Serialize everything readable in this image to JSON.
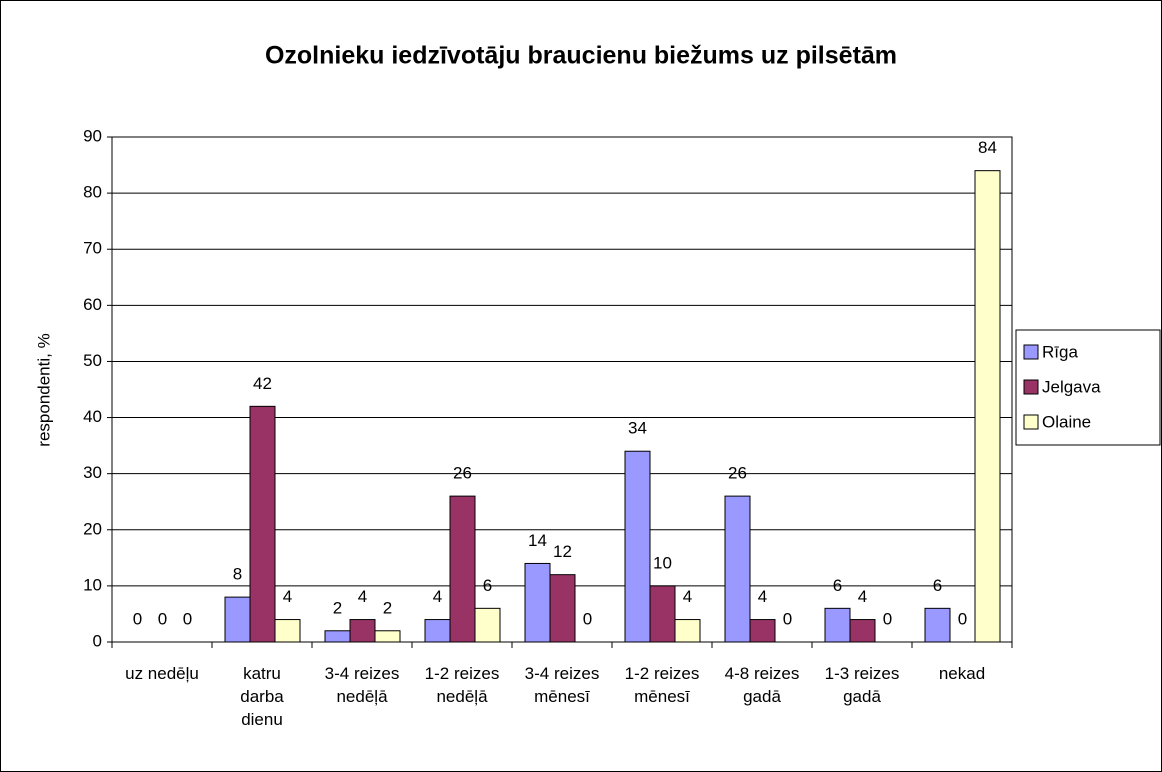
{
  "chart_data": {
    "type": "bar",
    "title": "Ozolnieku iedzīvotāju braucienu biežums uz pilsētām",
    "ylabel": "respondenti, %",
    "categories": [
      "uz nedēļu",
      "katru darba dienu",
      "3-4 reizes nedēļā",
      "1-2 reizes nedēļā",
      "3-4 reizes mēnesī",
      "1-2 reizes mēnesī",
      "4-8 reizes gadā",
      "1-3 reizes gadā",
      "nekad"
    ],
    "series": [
      {
        "name": "Rīga",
        "color": "#9999ff",
        "values": [
          0,
          8,
          2,
          4,
          14,
          34,
          26,
          6,
          6
        ]
      },
      {
        "name": "Jelgava",
        "color": "#993366",
        "values": [
          0,
          42,
          4,
          26,
          12,
          10,
          4,
          4,
          0
        ]
      },
      {
        "name": "Olaine",
        "color": "#ffffcc",
        "values": [
          0,
          4,
          2,
          6,
          0,
          4,
          0,
          0,
          84
        ]
      }
    ],
    "ylim": [
      0,
      90
    ],
    "yticks": [
      0,
      10,
      20,
      30,
      40,
      50,
      60,
      70,
      80,
      90
    ],
    "grid": true,
    "legend": "right"
  }
}
